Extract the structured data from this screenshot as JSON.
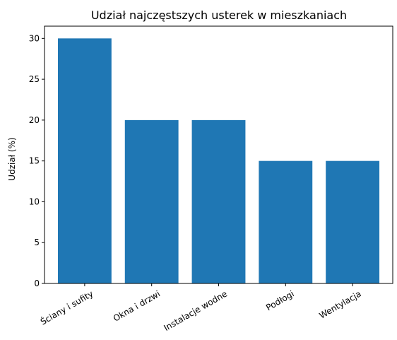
{
  "chart_data": {
    "type": "bar",
    "title": "Udział najczęstszych usterek w mieszkaniach",
    "xlabel": "",
    "ylabel": "Udział (%)",
    "categories": [
      "Ściany i sufity",
      "Okna i drzwi",
      "Instalacje wodne",
      "Podłogi",
      "Wentylacja"
    ],
    "values": [
      30,
      20,
      20,
      15,
      15
    ],
    "ylim": [
      0,
      31.5
    ],
    "yticks": [
      0,
      5,
      10,
      15,
      20,
      25,
      30
    ],
    "grid": false,
    "bar_color": "#1f77b4"
  }
}
